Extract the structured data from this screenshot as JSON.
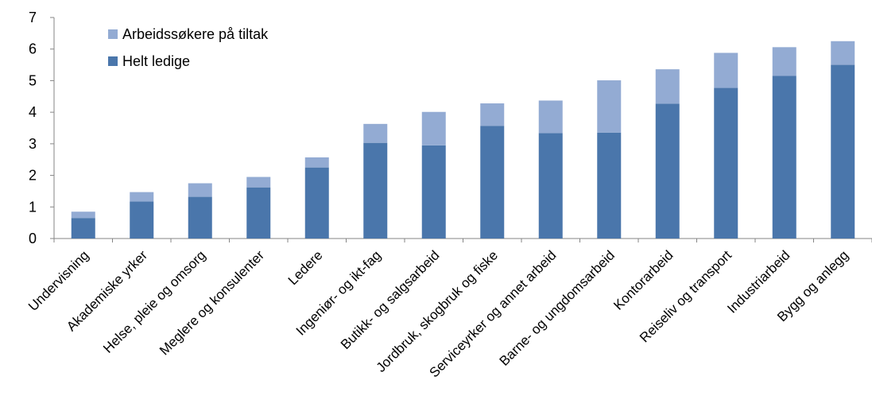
{
  "chart_data": {
    "type": "bar",
    "stacked": true,
    "categories": [
      "Undervisning",
      "Akademiske yrker",
      "Helse, pleie og omsorg",
      "Meglere og konsulenter",
      "Ledere",
      "Ingeniør- og ikt-fag",
      "Butikk- og salgsarbeid",
      "Jordbruk, skogbruk og fiske",
      "Serviceyrker og annet arbeid",
      "Barne- og ungdomsarbeid",
      "Kontorarbeid",
      "Reiseliv og transport",
      "Industriarbeid",
      "Bygg og anlegg"
    ],
    "series": [
      {
        "name": "Helt ledige",
        "color": "#4a76ab",
        "values": [
          0.65,
          1.17,
          1.32,
          1.62,
          2.25,
          3.03,
          2.95,
          3.57,
          3.34,
          3.35,
          4.27,
          4.77,
          5.15,
          5.5
        ]
      },
      {
        "name": "Arbeidssøkere på tiltak",
        "color": "#93abd3",
        "values": [
          0.2,
          0.3,
          0.43,
          0.33,
          0.32,
          0.6,
          1.06,
          0.71,
          1.03,
          1.66,
          1.09,
          1.11,
          0.91,
          0.75
        ]
      }
    ],
    "legend_order": [
      "Arbeidssøkere på tiltak",
      "Helt ledige"
    ],
    "legend_position": "top-left",
    "y_ticks": [
      "0",
      "1",
      "2",
      "3",
      "4",
      "5",
      "6",
      "7"
    ],
    "ylim": [
      0,
      7
    ],
    "grid": false,
    "title": "",
    "xlabel": "",
    "ylabel": ""
  }
}
